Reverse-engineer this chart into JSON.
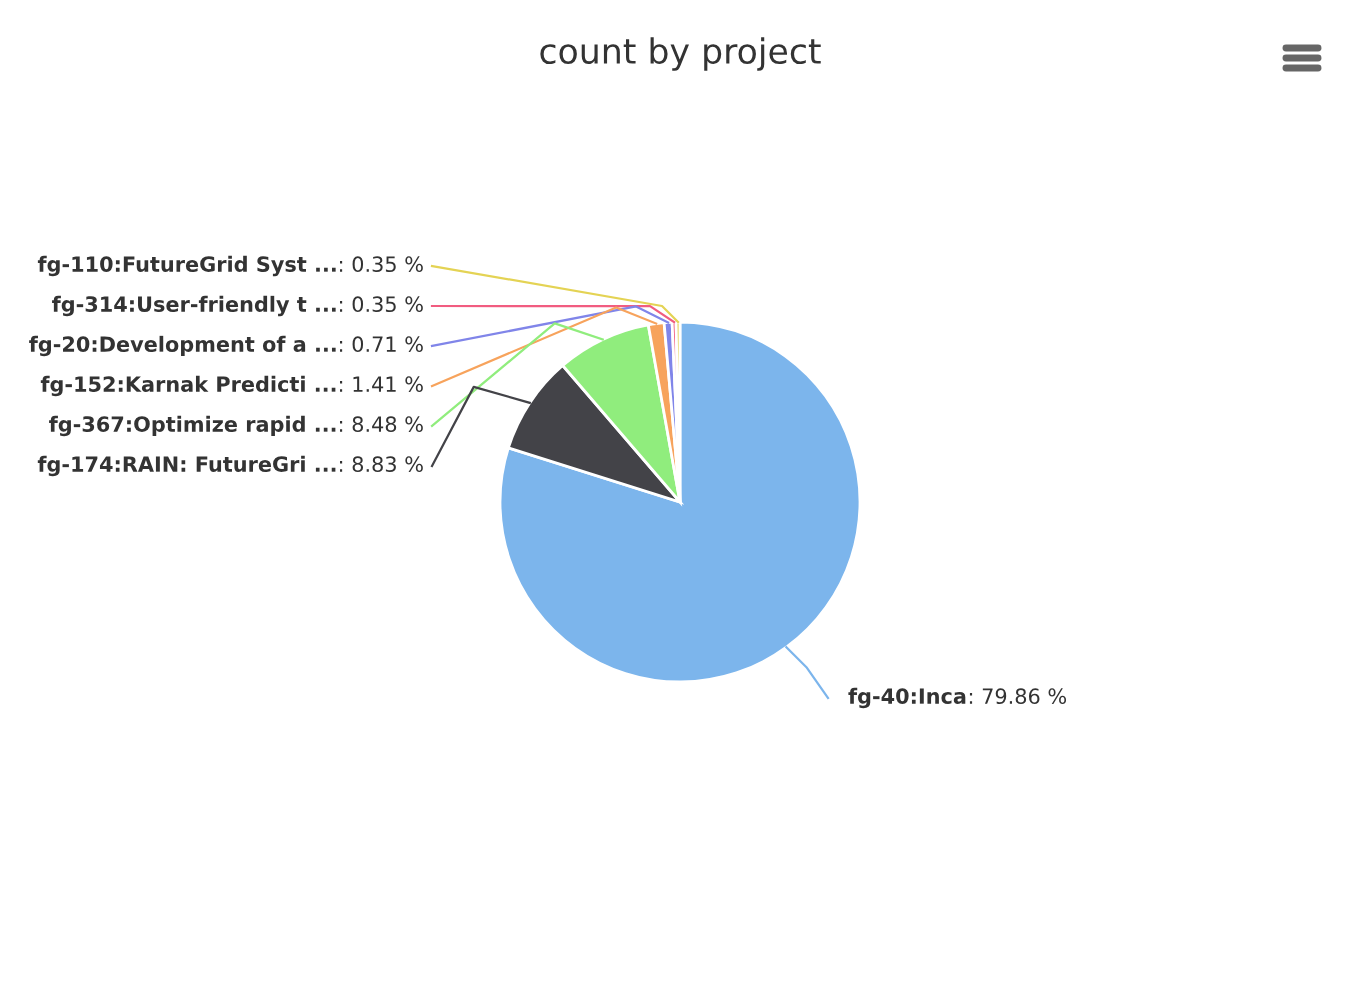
{
  "chart_data": {
    "type": "pie",
    "title": "count by project",
    "categories": [
      "fg-40:Inca",
      "fg-174:RAIN: FutureGri ...",
      "fg-367:Optimize rapid ...",
      "fg-152:Karnak Predicti ...",
      "fg-20:Development of a ...",
      "fg-314:User-friendly t ...",
      "fg-110:FutureGrid Syst ..."
    ],
    "values": [
      79.86,
      8.83,
      8.48,
      1.41,
      0.71,
      0.35,
      0.35
    ],
    "colors": [
      "#7cb5ec",
      "#434348",
      "#90ed7d",
      "#f7a35c",
      "#8085e9",
      "#f15c80",
      "#e4d354"
    ],
    "value_labels": [
      ": 79.86 %",
      ": 8.83 %",
      ": 8.48 %",
      ": 1.41 %",
      ": 0.71 %",
      ": 0.35 %",
      ": 0.35 %"
    ]
  }
}
